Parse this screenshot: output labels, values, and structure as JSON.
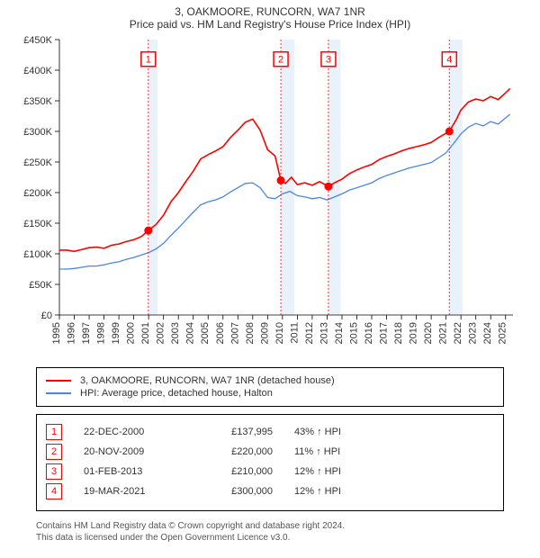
{
  "titles": {
    "line1": "3, OAKMOORE, RUNCORN, WA7 1NR",
    "line2": "Price paid vs. HM Land Registry's House Price Index (HPI)"
  },
  "chart": {
    "type": "line",
    "background_color": "#ffffff",
    "axis_color": "#000000",
    "axis_width": 0.8,
    "y": {
      "min": 0,
      "max": 450000,
      "step": 50000,
      "labels": [
        "£0",
        "£50K",
        "£100K",
        "£150K",
        "£200K",
        "£250K",
        "£300K",
        "£350K",
        "£400K",
        "£450K"
      ],
      "label_fontsize": 11
    },
    "x": {
      "min": 1995,
      "max": 2025.5,
      "tick_step": 1,
      "labels": [
        "1995",
        "1996",
        "1997",
        "1998",
        "1999",
        "2000",
        "2001",
        "2002",
        "2003",
        "2004",
        "2005",
        "2006",
        "2007",
        "2008",
        "2009",
        "2010",
        "2011",
        "2012",
        "2013",
        "2014",
        "2015",
        "2016",
        "2017",
        "2018",
        "2019",
        "2020",
        "2021",
        "2022",
        "2023",
        "2024",
        "2025"
      ],
      "label_fontsize": 11,
      "label_rotation": -90
    },
    "bands": [
      {
        "from": 2000.98,
        "to": 2001.6
      },
      {
        "from": 2009.89,
        "to": 2010.8
      },
      {
        "from": 2013.09,
        "to": 2013.9
      },
      {
        "from": 2021.22,
        "to": 2022.1
      }
    ],
    "band_color": "#cfe2f3",
    "band_opacity": 0.45,
    "markers": [
      {
        "n": "1",
        "year": 2000.98,
        "box_y": 418000,
        "dot_value": 137995
      },
      {
        "n": "2",
        "year": 2009.89,
        "box_y": 418000,
        "dot_value": 220000
      },
      {
        "n": "3",
        "year": 2013.09,
        "box_y": 418000,
        "dot_value": 210000
      },
      {
        "n": "4",
        "year": 2021.22,
        "box_y": 418000,
        "dot_value": 300000
      }
    ],
    "marker_box_size": 16,
    "marker_border_color": "#ff0000",
    "marker_border_width": 1.5,
    "marker_dot_radius": 4.5,
    "marker_dot_color": "#ff0000",
    "vline_color": "#ff0000",
    "vline_dash": "2 2",
    "series": [
      {
        "id": "property",
        "label": "3, OAKMOORE, RUNCORN, WA7 1NR (detached house)",
        "color": "#ff0000",
        "width": 1.6,
        "points": [
          [
            1995.0,
            106000
          ],
          [
            1995.5,
            106000
          ],
          [
            1996.0,
            104000
          ],
          [
            1996.5,
            107000
          ],
          [
            1997.0,
            110000
          ],
          [
            1997.5,
            111000
          ],
          [
            1998.0,
            109000
          ],
          [
            1998.5,
            114000
          ],
          [
            1999.0,
            116000
          ],
          [
            1999.5,
            120000
          ],
          [
            2000.0,
            123000
          ],
          [
            2000.5,
            128000
          ],
          [
            2000.98,
            137995
          ],
          [
            2001.5,
            148000
          ],
          [
            2002.0,
            163000
          ],
          [
            2002.5,
            185000
          ],
          [
            2003.0,
            200000
          ],
          [
            2003.5,
            218000
          ],
          [
            2004.0,
            235000
          ],
          [
            2004.5,
            255000
          ],
          [
            2005.0,
            262000
          ],
          [
            2005.5,
            268000
          ],
          [
            2006.0,
            275000
          ],
          [
            2006.5,
            290000
          ],
          [
            2007.0,
            302000
          ],
          [
            2007.5,
            315000
          ],
          [
            2008.0,
            320000
          ],
          [
            2008.5,
            302000
          ],
          [
            2009.0,
            270000
          ],
          [
            2009.5,
            260000
          ],
          [
            2009.89,
            220000
          ],
          [
            2010.2,
            215000
          ],
          [
            2010.6,
            225000
          ],
          [
            2011.0,
            213000
          ],
          [
            2011.5,
            216000
          ],
          [
            2012.0,
            212000
          ],
          [
            2012.5,
            218000
          ],
          [
            2013.09,
            210000
          ],
          [
            2013.5,
            216000
          ],
          [
            2014.0,
            222000
          ],
          [
            2014.5,
            231000
          ],
          [
            2015.0,
            237000
          ],
          [
            2015.5,
            242000
          ],
          [
            2016.0,
            246000
          ],
          [
            2016.5,
            254000
          ],
          [
            2017.0,
            259000
          ],
          [
            2017.5,
            263000
          ],
          [
            2018.0,
            268000
          ],
          [
            2018.5,
            272000
          ],
          [
            2019.0,
            275000
          ],
          [
            2019.5,
            278000
          ],
          [
            2020.0,
            282000
          ],
          [
            2020.5,
            290000
          ],
          [
            2021.0,
            297000
          ],
          [
            2021.22,
            300000
          ],
          [
            2021.7,
            320000
          ],
          [
            2022.0,
            335000
          ],
          [
            2022.5,
            348000
          ],
          [
            2023.0,
            353000
          ],
          [
            2023.5,
            350000
          ],
          [
            2024.0,
            357000
          ],
          [
            2024.5,
            352000
          ],
          [
            2025.0,
            363000
          ],
          [
            2025.3,
            370000
          ]
        ]
      },
      {
        "id": "hpi",
        "label": "HPI: Average price, detached house, Halton",
        "color": "#4a86e8",
        "width": 1.3,
        "points": [
          [
            1995.0,
            75000
          ],
          [
            1995.5,
            75000
          ],
          [
            1996.0,
            76000
          ],
          [
            1996.5,
            78000
          ],
          [
            1997.0,
            80000
          ],
          [
            1997.5,
            80000
          ],
          [
            1998.0,
            82000
          ],
          [
            1998.5,
            85000
          ],
          [
            1999.0,
            87000
          ],
          [
            1999.5,
            91000
          ],
          [
            2000.0,
            94000
          ],
          [
            2000.5,
            98000
          ],
          [
            2001.0,
            102000
          ],
          [
            2001.5,
            108000
          ],
          [
            2002.0,
            117000
          ],
          [
            2002.5,
            130000
          ],
          [
            2003.0,
            142000
          ],
          [
            2003.5,
            155000
          ],
          [
            2004.0,
            168000
          ],
          [
            2004.5,
            180000
          ],
          [
            2005.0,
            185000
          ],
          [
            2005.5,
            188000
          ],
          [
            2006.0,
            193000
          ],
          [
            2006.5,
            201000
          ],
          [
            2007.0,
            208000
          ],
          [
            2007.5,
            215000
          ],
          [
            2008.0,
            216000
          ],
          [
            2008.5,
            208000
          ],
          [
            2009.0,
            192000
          ],
          [
            2009.5,
            190000
          ],
          [
            2010.0,
            198000
          ],
          [
            2010.5,
            202000
          ],
          [
            2011.0,
            195000
          ],
          [
            2011.5,
            193000
          ],
          [
            2012.0,
            190000
          ],
          [
            2012.5,
            192000
          ],
          [
            2013.0,
            188000
          ],
          [
            2013.5,
            193000
          ],
          [
            2014.0,
            198000
          ],
          [
            2014.5,
            204000
          ],
          [
            2015.0,
            208000
          ],
          [
            2015.5,
            212000
          ],
          [
            2016.0,
            216000
          ],
          [
            2016.5,
            223000
          ],
          [
            2017.0,
            228000
          ],
          [
            2017.5,
            232000
          ],
          [
            2018.0,
            236000
          ],
          [
            2018.5,
            240000
          ],
          [
            2019.0,
            243000
          ],
          [
            2019.5,
            246000
          ],
          [
            2020.0,
            249000
          ],
          [
            2020.5,
            257000
          ],
          [
            2021.0,
            265000
          ],
          [
            2021.5,
            280000
          ],
          [
            2022.0,
            296000
          ],
          [
            2022.5,
            307000
          ],
          [
            2023.0,
            313000
          ],
          [
            2023.5,
            309000
          ],
          [
            2024.0,
            316000
          ],
          [
            2024.5,
            312000
          ],
          [
            2025.0,
            322000
          ],
          [
            2025.3,
            328000
          ]
        ]
      }
    ]
  },
  "legend": {
    "items": [
      {
        "color": "#ff0000",
        "width": 2,
        "label": "3, OAKMOORE, RUNCORN, WA7 1NR (detached house)"
      },
      {
        "color": "#4a86e8",
        "width": 1.5,
        "label": "HPI: Average price, detached house, Halton"
      }
    ]
  },
  "sales": [
    {
      "n": "1",
      "date": "22-DEC-2000",
      "price": "£137,995",
      "pct": "43% ↑ HPI"
    },
    {
      "n": "2",
      "date": "20-NOV-2009",
      "price": "£220,000",
      "pct": "11% ↑ HPI"
    },
    {
      "n": "3",
      "date": "01-FEB-2013",
      "price": "£210,000",
      "pct": "12% ↑ HPI"
    },
    {
      "n": "4",
      "date": "19-MAR-2021",
      "price": "£300,000",
      "pct": "12% ↑ HPI"
    }
  ],
  "footer": {
    "line1": "Contains HM Land Registry data © Crown copyright and database right 2024.",
    "line2": "This data is licensed under the Open Government Licence v3.0."
  }
}
